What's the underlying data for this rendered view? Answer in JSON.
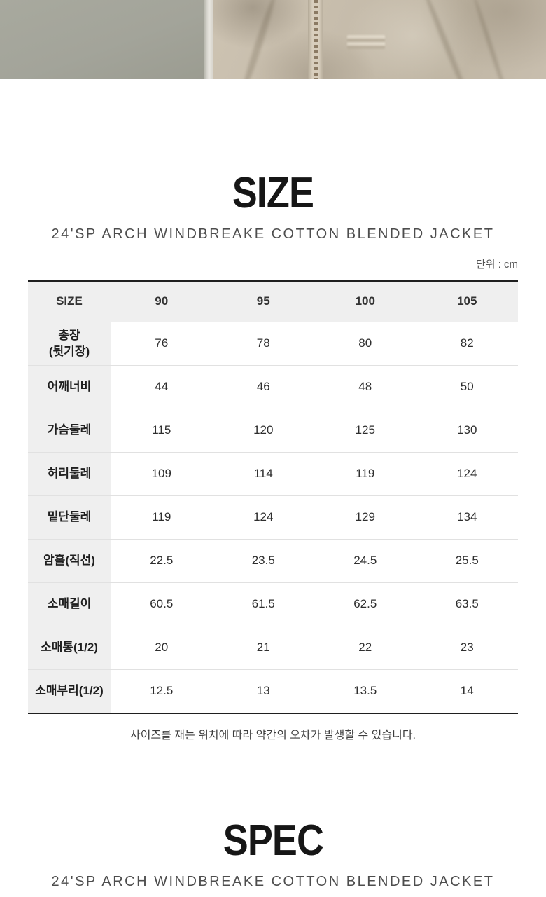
{
  "page": {
    "unit_label": "단위 : cm",
    "note": "사이즈를 재는 위치에 따라 약간의 오차가 발생할 수 있습니다."
  },
  "size_section": {
    "title": "SIZE",
    "subtitle": "24'SP ARCH WINDBREAKE COTTON BLENDED JACKET"
  },
  "spec_section": {
    "title": "SPEC",
    "subtitle": "24'SP ARCH WINDBREAKE COTTON BLENDED JACKET"
  },
  "size_table": {
    "header": [
      "SIZE",
      "90",
      "95",
      "100",
      "105"
    ],
    "rows": [
      {
        "label": "총장",
        "sublabel": "(뒷기장)",
        "values": [
          "76",
          "78",
          "80",
          "82"
        ]
      },
      {
        "label": "어깨너비",
        "sublabel": "",
        "values": [
          "44",
          "46",
          "48",
          "50"
        ]
      },
      {
        "label": "가슴둘레",
        "sublabel": "",
        "values": [
          "115",
          "120",
          "125",
          "130"
        ]
      },
      {
        "label": "허리둘레",
        "sublabel": "",
        "values": [
          "109",
          "114",
          "119",
          "124"
        ]
      },
      {
        "label": "밑단둘레",
        "sublabel": "",
        "values": [
          "119",
          "124",
          "129",
          "134"
        ]
      },
      {
        "label": "암홀(직선)",
        "sublabel": "",
        "values": [
          "22.5",
          "23.5",
          "24.5",
          "25.5"
        ]
      },
      {
        "label": "소매길이",
        "sublabel": "",
        "values": [
          "60.5",
          "61.5",
          "62.5",
          "63.5"
        ]
      },
      {
        "label": "소매통(1/2)",
        "sublabel": "",
        "values": [
          "20",
          "21",
          "22",
          "23"
        ]
      },
      {
        "label": "소매부리(1/2)",
        "sublabel": "",
        "values": [
          "12.5",
          "13",
          "13.5",
          "14"
        ]
      }
    ]
  },
  "colors": {
    "table_header_bg": "#efefef",
    "table_border_dark": "#1f1f1f",
    "row_divider": "#e1e1e1",
    "photo_wall": "#a3a49a",
    "jacket_beige": "#c6bcab",
    "heading_text": "#161616"
  }
}
